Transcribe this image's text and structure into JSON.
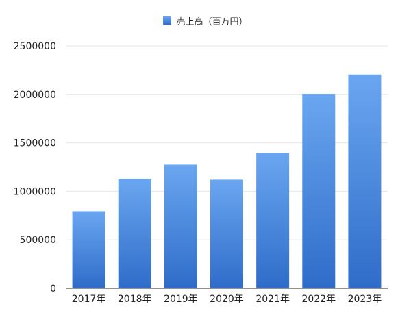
{
  "chart_data": {
    "type": "bar",
    "categories": [
      "2017年",
      "2018年",
      "2019年",
      "2020年",
      "2021年",
      "2022年",
      "2023年"
    ],
    "series": [
      {
        "name": "売上高（百万円）",
        "values": [
          795000,
          1130000,
          1275000,
          1120000,
          1395000,
          2005000,
          2205000
        ]
      }
    ],
    "y_ticks": [
      "0",
      "500000",
      "1000000",
      "1500000",
      "2000000",
      "2500000"
    ],
    "ylim": [
      0,
      2500000
    ],
    "grid": true,
    "legend_position": "top-center",
    "colors": {
      "bar_top": "#6aa6f0",
      "bar_bottom": "#2f6cc9",
      "grid": "#e6e6e6",
      "axis": "#222222"
    }
  }
}
